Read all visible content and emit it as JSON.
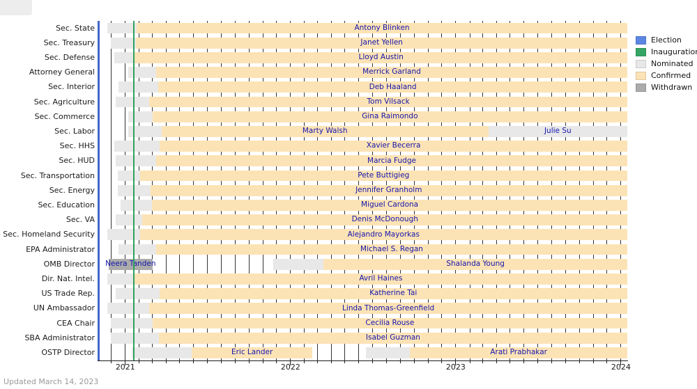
{
  "page": {
    "updated_note": "Updated March 14, 2023"
  },
  "legend": {
    "items": [
      {
        "label": "Election",
        "color": "#5c86e2"
      },
      {
        "label": "Inauguration",
        "color": "#35a563"
      },
      {
        "label": "Nominated",
        "color": "#e8e8e8"
      },
      {
        "label": "Confirmed",
        "color": "#fce3b5"
      },
      {
        "label": "Withdrawn",
        "color": "#ababab"
      }
    ]
  },
  "chart_data": {
    "type": "gantt-timeline",
    "title": "",
    "x_start": "2020-11-03",
    "x_end": "2024-01-15",
    "grid": "monthly vertical lines",
    "legend_position": "top-right outside plot",
    "events": [
      {
        "name": "Election",
        "date": "2020-11-03",
        "color": "#4166cf"
      },
      {
        "name": "Inauguration",
        "date": "2021-01-20",
        "color": "#2fa05e"
      }
    ],
    "year_ticks": [
      {
        "label": "2021",
        "date": "2021-01-01"
      },
      {
        "label": "2022",
        "date": "2022-01-01"
      },
      {
        "label": "2023",
        "date": "2023-01-01"
      },
      {
        "label": "2024",
        "date": "2024-01-01"
      }
    ],
    "month_gridlines": {
      "from": "2020-12-01",
      "to": "2024-01-01"
    },
    "status_colors": {
      "nominated": "#e8e8e8",
      "confirmed": "#fce3b5",
      "withdrawn": "#ababab"
    },
    "rows": [
      {
        "label": "Sec. State",
        "segments": [
          {
            "status": "nominated",
            "start": "2020-11-23",
            "end": "2021-01-26"
          },
          {
            "status": "confirmed",
            "start": "2021-01-26",
            "end": "end"
          }
        ],
        "names": [
          {
            "text": "Antony Blinken",
            "anchor": 1
          }
        ]
      },
      {
        "label": "Sec. Treasury",
        "segments": [
          {
            "status": "nominated",
            "start": "2020-11-30",
            "end": "2021-01-25"
          },
          {
            "status": "confirmed",
            "start": "2021-01-25",
            "end": "end"
          }
        ],
        "names": [
          {
            "text": "Janet Yellen",
            "anchor": 1
          }
        ]
      },
      {
        "label": "Sec. Defense",
        "segments": [
          {
            "status": "nominated",
            "start": "2020-12-08",
            "end": "2021-01-22"
          },
          {
            "status": "confirmed",
            "start": "2021-01-22",
            "end": "end"
          }
        ],
        "names": [
          {
            "text": "Lloyd Austin",
            "anchor": 1
          }
        ]
      },
      {
        "label": "Attorney General",
        "segments": [
          {
            "status": "nominated",
            "start": "2021-01-07",
            "end": "2021-03-10"
          },
          {
            "status": "confirmed",
            "start": "2021-03-10",
            "end": "end"
          }
        ],
        "names": [
          {
            "text": "Merrick Garland",
            "anchor": 1
          }
        ]
      },
      {
        "label": "Sec. Interior",
        "segments": [
          {
            "status": "nominated",
            "start": "2020-12-17",
            "end": "2021-03-15"
          },
          {
            "status": "confirmed",
            "start": "2021-03-15",
            "end": "end"
          }
        ],
        "names": [
          {
            "text": "Deb Haaland",
            "anchor": 1
          }
        ]
      },
      {
        "label": "Sec. Agriculture",
        "segments": [
          {
            "status": "nominated",
            "start": "2020-12-10",
            "end": "2021-02-23"
          },
          {
            "status": "confirmed",
            "start": "2021-02-23",
            "end": "end"
          }
        ],
        "names": [
          {
            "text": "Tom Vilsack",
            "anchor": 1
          }
        ]
      },
      {
        "label": "Sec. Commerce",
        "segments": [
          {
            "status": "nominated",
            "start": "2021-01-07",
            "end": "2021-03-02"
          },
          {
            "status": "confirmed",
            "start": "2021-03-02",
            "end": "end"
          }
        ],
        "names": [
          {
            "text": "Gina Raimondo",
            "anchor": 1
          }
        ]
      },
      {
        "label": "Sec. Labor",
        "segments": [
          {
            "status": "nominated",
            "start": "2021-01-07",
            "end": "2021-03-22"
          },
          {
            "status": "confirmed",
            "start": "2021-03-22",
            "end": "2023-03-14"
          },
          {
            "status": "nominated",
            "start": "2023-03-14",
            "end": "end"
          }
        ],
        "names": [
          {
            "text": "Marty Walsh",
            "anchor": 1
          },
          {
            "text": "Julie Su",
            "anchor": 2
          }
        ]
      },
      {
        "label": "Sec. HHS",
        "segments": [
          {
            "status": "nominated",
            "start": "2020-12-07",
            "end": "2021-03-18"
          },
          {
            "status": "confirmed",
            "start": "2021-03-18",
            "end": "end"
          }
        ],
        "names": [
          {
            "text": "Xavier Becerra",
            "anchor": 1
          }
        ]
      },
      {
        "label": "Sec. HUD",
        "segments": [
          {
            "status": "nominated",
            "start": "2020-12-10",
            "end": "2021-03-10"
          },
          {
            "status": "confirmed",
            "start": "2021-03-10",
            "end": "end"
          }
        ],
        "names": [
          {
            "text": "Marcia Fudge",
            "anchor": 1
          }
        ]
      },
      {
        "label": "Sec. Transportation",
        "segments": [
          {
            "status": "nominated",
            "start": "2020-12-15",
            "end": "2021-02-02"
          },
          {
            "status": "confirmed",
            "start": "2021-02-02",
            "end": "end"
          }
        ],
        "names": [
          {
            "text": "Pete Buttigieg",
            "anchor": 1
          }
        ]
      },
      {
        "label": "Sec. Energy",
        "segments": [
          {
            "status": "nominated",
            "start": "2020-12-15",
            "end": "2021-02-25"
          },
          {
            "status": "confirmed",
            "start": "2021-02-25",
            "end": "end"
          }
        ],
        "names": [
          {
            "text": "Jennifer Granholm",
            "anchor": 1
          }
        ]
      },
      {
        "label": "Sec. Education",
        "segments": [
          {
            "status": "nominated",
            "start": "2020-12-22",
            "end": "2021-03-01"
          },
          {
            "status": "confirmed",
            "start": "2021-03-01",
            "end": "end"
          }
        ],
        "names": [
          {
            "text": "Miguel Cardona",
            "anchor": 1
          }
        ]
      },
      {
        "label": "Sec. VA",
        "segments": [
          {
            "status": "nominated",
            "start": "2020-12-10",
            "end": "2021-02-08"
          },
          {
            "status": "confirmed",
            "start": "2021-02-08",
            "end": "end"
          }
        ],
        "names": [
          {
            "text": "Denis McDonough",
            "anchor": 1
          }
        ]
      },
      {
        "label": "Sec. Homeland Security",
        "segments": [
          {
            "status": "nominated",
            "start": "2020-11-23",
            "end": "2021-02-02"
          },
          {
            "status": "confirmed",
            "start": "2021-02-02",
            "end": "end"
          }
        ],
        "names": [
          {
            "text": "Alejandro Mayorkas",
            "anchor": 1
          }
        ]
      },
      {
        "label": "EPA Administrator",
        "segments": [
          {
            "status": "nominated",
            "start": "2020-12-17",
            "end": "2021-03-10"
          },
          {
            "status": "confirmed",
            "start": "2021-03-10",
            "end": "end"
          }
        ],
        "names": [
          {
            "text": "Michael S. Regan",
            "anchor": 1
          }
        ]
      },
      {
        "label": "OMB Director",
        "segments": [
          {
            "status": "withdrawn",
            "start": "2020-11-25",
            "end": "2021-03-02"
          },
          {
            "status": "nominated",
            "start": "2021-11-24",
            "end": "2022-03-15"
          },
          {
            "status": "confirmed",
            "start": "2022-03-15",
            "end": "end"
          }
        ],
        "names": [
          {
            "text": "Neera Tanden",
            "anchor": 0
          },
          {
            "text": "Shalanda Young",
            "anchor": 2
          }
        ]
      },
      {
        "label": "Dir. Nat. Intel.",
        "segments": [
          {
            "status": "nominated",
            "start": "2020-11-23",
            "end": "2021-01-21"
          },
          {
            "status": "confirmed",
            "start": "2021-01-21",
            "end": "end"
          }
        ],
        "names": [
          {
            "text": "Avril Haines",
            "anchor": 1
          }
        ]
      },
      {
        "label": "US Trade Rep.",
        "segments": [
          {
            "status": "nominated",
            "start": "2020-12-10",
            "end": "2021-03-17"
          },
          {
            "status": "confirmed",
            "start": "2021-03-17",
            "end": "end"
          }
        ],
        "names": [
          {
            "text": "Katherine Tai",
            "anchor": 1
          }
        ]
      },
      {
        "label": "UN Ambassador",
        "segments": [
          {
            "status": "nominated",
            "start": "2020-11-23",
            "end": "2021-02-23"
          },
          {
            "status": "confirmed",
            "start": "2021-02-23",
            "end": "end"
          }
        ],
        "names": [
          {
            "text": "Linda Thomas-Greenfield",
            "anchor": 1
          }
        ]
      },
      {
        "label": "CEA Chair",
        "segments": [
          {
            "status": "nominated",
            "start": "2020-11-30",
            "end": "2021-03-02"
          },
          {
            "status": "confirmed",
            "start": "2021-03-02",
            "end": "end"
          }
        ],
        "names": [
          {
            "text": "Cecilia Rouse",
            "anchor": 1
          }
        ]
      },
      {
        "label": "SBA Administrator",
        "segments": [
          {
            "status": "nominated",
            "start": "2020-11-30",
            "end": "2021-03-16"
          },
          {
            "status": "confirmed",
            "start": "2021-03-16",
            "end": "end"
          }
        ],
        "names": [
          {
            "text": "Isabel Guzman",
            "anchor": 1
          }
        ]
      },
      {
        "label": "OSTP Director",
        "segments": [
          {
            "status": "nominated",
            "start": "2021-01-15",
            "end": "2021-05-28"
          },
          {
            "status": "confirmed",
            "start": "2021-05-28",
            "end": "2022-02-18"
          },
          {
            "status": "nominated",
            "start": "2022-06-17",
            "end": "2022-09-22"
          },
          {
            "status": "confirmed",
            "start": "2022-09-22",
            "end": "end"
          }
        ],
        "names": [
          {
            "text": "Eric Lander",
            "anchor": 1
          },
          {
            "text": "Arati Prabhakar",
            "anchor": 3
          }
        ]
      }
    ]
  }
}
